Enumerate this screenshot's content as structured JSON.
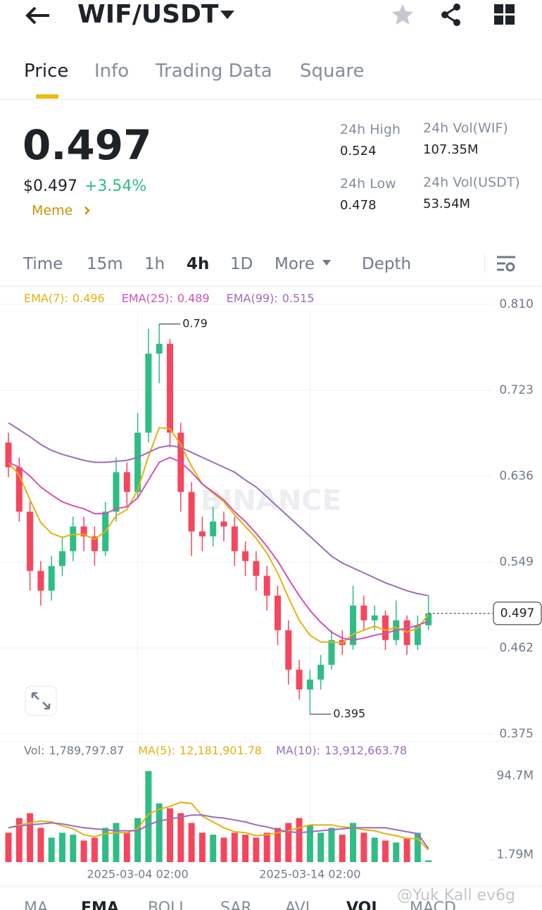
{
  "header": {
    "title": "WIF/USDT"
  },
  "tabs": [
    "Price",
    "Info",
    "Trading Data",
    "Square"
  ],
  "ticker": {
    "price": "0.497",
    "usd_price": "$0.497",
    "change": "+3.54%",
    "tag": "Meme",
    "stats": [
      {
        "label": "24h High",
        "value": "0.524"
      },
      {
        "label": "24h Vol(WIF)",
        "value": "107.35M"
      },
      {
        "label": "24h Low",
        "value": "0.478"
      },
      {
        "label": "24h Vol(USDT)",
        "value": "53.54M"
      }
    ]
  },
  "intervals": [
    "Time",
    "15m",
    "1h",
    "4h",
    "1D",
    "More",
    "Depth"
  ],
  "indicator_tabs": [
    "MA",
    "EMA",
    "BOLL",
    "SAR",
    "AVL",
    "VOL",
    "MACD"
  ],
  "chart_watermark": "BINANCE",
  "watermark": "@Yuk Kall ev6g",
  "chart_data": [
    {
      "type": "candlestick",
      "up_color": "#2ebd85",
      "down_color": "#f6465d",
      "grid": true,
      "categories": [
        null,
        null,
        null,
        null,
        null,
        null,
        null,
        null,
        null,
        null,
        null,
        null,
        "2025-03-04 02:00",
        null,
        null,
        null,
        null,
        null,
        null,
        null,
        null,
        null,
        null,
        null,
        null,
        null,
        null,
        null,
        "2025-03-14 02:00",
        null,
        null,
        null,
        null,
        null,
        null,
        null,
        null,
        null,
        null,
        null
      ],
      "open": [
        0.67,
        0.645,
        0.6,
        0.54,
        0.52,
        0.545,
        0.56,
        0.585,
        0.575,
        0.56,
        0.6,
        0.64,
        0.62,
        0.68,
        0.76,
        0.77,
        0.68,
        0.62,
        0.58,
        0.575,
        0.59,
        0.585,
        0.56,
        0.55,
        0.535,
        0.515,
        0.48,
        0.44,
        0.42,
        0.43,
        0.445,
        0.47,
        0.465,
        0.505,
        0.49,
        0.495,
        0.47,
        0.49,
        0.465,
        0.485
      ],
      "high": [
        0.68,
        0.655,
        0.61,
        0.55,
        0.555,
        0.575,
        0.595,
        0.595,
        0.585,
        0.61,
        0.655,
        0.65,
        0.7,
        0.785,
        0.79,
        0.775,
        0.69,
        0.63,
        0.595,
        0.605,
        0.6,
        0.595,
        0.57,
        0.56,
        0.545,
        0.525,
        0.49,
        0.45,
        0.44,
        0.455,
        0.48,
        0.48,
        0.525,
        0.515,
        0.505,
        0.5,
        0.51,
        0.495,
        0.495,
        0.515
      ],
      "low": [
        0.635,
        0.59,
        0.52,
        0.505,
        0.51,
        0.535,
        0.55,
        0.56,
        0.545,
        0.555,
        0.59,
        0.605,
        0.615,
        0.67,
        0.73,
        0.665,
        0.6,
        0.555,
        0.56,
        0.565,
        0.57,
        0.545,
        0.535,
        0.52,
        0.5,
        0.465,
        0.425,
        0.41,
        0.395,
        0.42,
        0.44,
        0.455,
        0.46,
        0.48,
        0.48,
        0.46,
        0.465,
        0.455,
        0.46,
        0.48
      ],
      "close": [
        0.645,
        0.6,
        0.54,
        0.52,
        0.545,
        0.56,
        0.585,
        0.575,
        0.56,
        0.6,
        0.64,
        0.62,
        0.68,
        0.76,
        0.77,
        0.68,
        0.62,
        0.58,
        0.575,
        0.59,
        0.585,
        0.56,
        0.55,
        0.535,
        0.515,
        0.48,
        0.44,
        0.42,
        0.43,
        0.445,
        0.47,
        0.465,
        0.505,
        0.49,
        0.495,
        0.47,
        0.49,
        0.465,
        0.485,
        0.497
      ],
      "ylim": [
        0.375,
        0.81
      ],
      "yticks": [
        {
          "value": 0.81,
          "label": "0.810"
        },
        0.723,
        0.636,
        0.549,
        0.462,
        0.375
      ],
      "series": [
        {
          "name": "EMA(7):",
          "color": "#e6b10f",
          "values": [
            0.65,
            0.637,
            0.612,
            0.589,
            0.578,
            0.574,
            0.577,
            0.577,
            0.572,
            0.58,
            0.596,
            0.602,
            0.622,
            0.656,
            0.685,
            0.684,
            0.668,
            0.646,
            0.628,
            0.619,
            0.61,
            0.597,
            0.585,
            0.573,
            0.558,
            0.538,
            0.513,
            0.49,
            0.475,
            0.468,
            0.468,
            0.467,
            0.476,
            0.48,
            0.484,
            0.48,
            0.483,
            0.478,
            0.482,
            0.496
          ]
        },
        {
          "name": "EMA(25):",
          "color": "#d451b4",
          "values": [
            0.65,
            0.645,
            0.636,
            0.625,
            0.617,
            0.61,
            0.606,
            0.603,
            0.598,
            0.598,
            0.603,
            0.605,
            0.614,
            0.632,
            0.65,
            0.655,
            0.65,
            0.64,
            0.628,
            0.62,
            0.612,
            0.6,
            0.59,
            0.578,
            0.565,
            0.55,
            0.532,
            0.515,
            0.5,
            0.488,
            0.478,
            0.472,
            0.47,
            0.472,
            0.475,
            0.477,
            0.48,
            0.482,
            0.485,
            0.489
          ]
        },
        {
          "name": "EMA(99):",
          "color": "#9a6cc0",
          "values": [
            0.69,
            0.683,
            0.676,
            0.668,
            0.662,
            0.658,
            0.655,
            0.652,
            0.65,
            0.65,
            0.651,
            0.652,
            0.655,
            0.66,
            0.665,
            0.667,
            0.665,
            0.66,
            0.655,
            0.65,
            0.645,
            0.64,
            0.632,
            0.625,
            0.615,
            0.605,
            0.595,
            0.585,
            0.575,
            0.565,
            0.555,
            0.548,
            0.543,
            0.538,
            0.533,
            0.528,
            0.524,
            0.52,
            0.517,
            0.515
          ]
        }
      ]
    },
    {
      "type": "bar",
      "ylim": [
        0,
        100000000
      ],
      "yticks": [
        {
          "value": 94700000,
          "label": "94.7M"
        },
        {
          "value": 1790000,
          "label": "1.79M"
        }
      ],
      "series": [
        {
          "name": "Vol:",
          "color": "#848e9c",
          "values": [
            30000000,
            45000000,
            50000000,
            35000000,
            25000000,
            30000000,
            28000000,
            22000000,
            25000000,
            35000000,
            40000000,
            30000000,
            45000000,
            93000000,
            60000000,
            55000000,
            50000000,
            40000000,
            30000000,
            28000000,
            25000000,
            30000000,
            28000000,
            25000000,
            30000000,
            35000000,
            40000000,
            45000000,
            38000000,
            30000000,
            35000000,
            28000000,
            40000000,
            30000000,
            25000000,
            22000000,
            20000000,
            25000000,
            30000000,
            1789797.87
          ],
          "value_labels": [
            null,
            null,
            null,
            null,
            null,
            null,
            null,
            null,
            null,
            null,
            null,
            null,
            null,
            null,
            null,
            null,
            null,
            null,
            null,
            null,
            null,
            null,
            null,
            null,
            null,
            null,
            null,
            null,
            null,
            null,
            null,
            null,
            null,
            null,
            null,
            null,
            null,
            null,
            null,
            "1,789,797.87"
          ]
        },
        {
          "name": "MA(5):",
          "color": "#e6b10f",
          "values": [
            35000000,
            38000000,
            40000000,
            42000000,
            41000000,
            37000000,
            34000000,
            28000000,
            26000000,
            29000000,
            30000000,
            30000000,
            34000000,
            49000000,
            54000000,
            57000000,
            61000000,
            60000000,
            47000000,
            41000000,
            35000000,
            31000000,
            30000000,
            27000000,
            28000000,
            30000000,
            32000000,
            35000000,
            38000000,
            38000000,
            38000000,
            36000000,
            35000000,
            33000000,
            32000000,
            29000000,
            27000000,
            24000000,
            24000000,
            12181901.78
          ],
          "value_labels": [
            null,
            null,
            null,
            null,
            null,
            null,
            null,
            null,
            null,
            null,
            null,
            null,
            null,
            null,
            null,
            null,
            null,
            null,
            null,
            null,
            null,
            null,
            null,
            null,
            null,
            null,
            null,
            null,
            null,
            null,
            null,
            null,
            null,
            null,
            null,
            null,
            null,
            null,
            null,
            "12,181,901.78"
          ]
        },
        {
          "name": "MA(10):",
          "color": "#9a6cc0",
          "values": [
            35000000,
            37000000,
            38000000,
            39000000,
            40000000,
            39000000,
            37000000,
            35000000,
            34000000,
            33000000,
            32000000,
            32000000,
            32000000,
            38000000,
            42000000,
            44000000,
            46000000,
            48000000,
            48000000,
            46000000,
            45000000,
            43000000,
            41000000,
            38000000,
            36000000,
            33000000,
            31000000,
            30000000,
            31000000,
            32000000,
            33000000,
            34000000,
            35000000,
            35000000,
            35000000,
            35000000,
            33000000,
            31000000,
            29000000,
            13912663.78
          ],
          "value_labels": [
            null,
            null,
            null,
            null,
            null,
            null,
            null,
            null,
            null,
            null,
            null,
            null,
            null,
            null,
            null,
            null,
            null,
            null,
            null,
            null,
            null,
            null,
            null,
            null,
            null,
            null,
            null,
            null,
            null,
            null,
            null,
            null,
            null,
            null,
            null,
            null,
            null,
            null,
            null,
            "13,912,663.78"
          ]
        }
      ]
    }
  ]
}
